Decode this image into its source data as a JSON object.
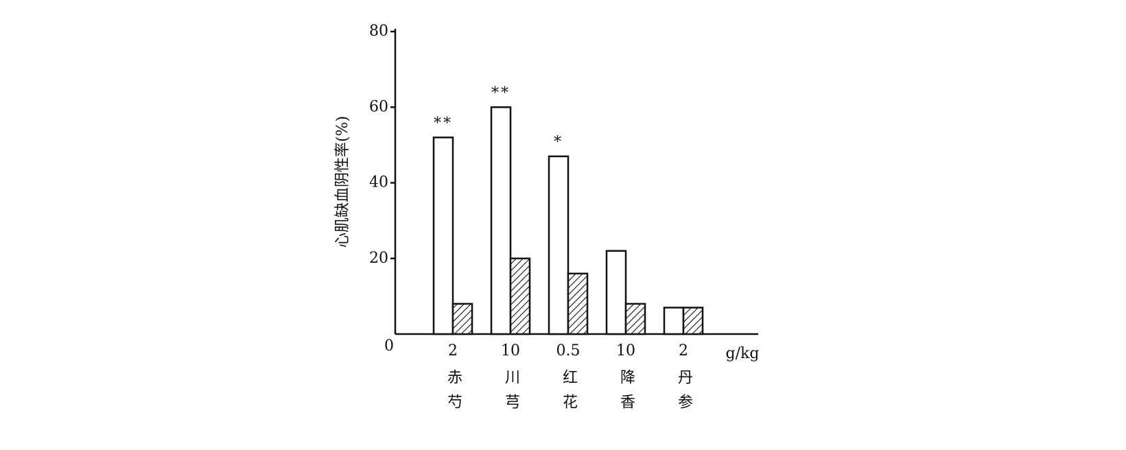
{
  "chart_data": {
    "type": "bar",
    "y_label": "心肌缺血阴性率(%)",
    "x_unit": "g/kg",
    "categories": [
      "2",
      "10",
      "0.5",
      "10",
      "2"
    ],
    "herbs": [
      "赤芍",
      "川芎",
      "红花",
      "降香",
      "丹参"
    ],
    "significance": [
      "**",
      "**",
      "*",
      null,
      null
    ],
    "series": [
      {
        "color": "#ffffff",
        "pattern": "none",
        "values": [
          52,
          60,
          47,
          22,
          7
        ]
      },
      {
        "color": "#ffffff",
        "pattern": "hatch",
        "values": [
          8,
          20,
          16,
          8,
          7
        ]
      }
    ],
    "ylim": [
      0,
      80
    ],
    "yticks": [
      0,
      20,
      40,
      60,
      80
    ],
    "grid": false
  }
}
